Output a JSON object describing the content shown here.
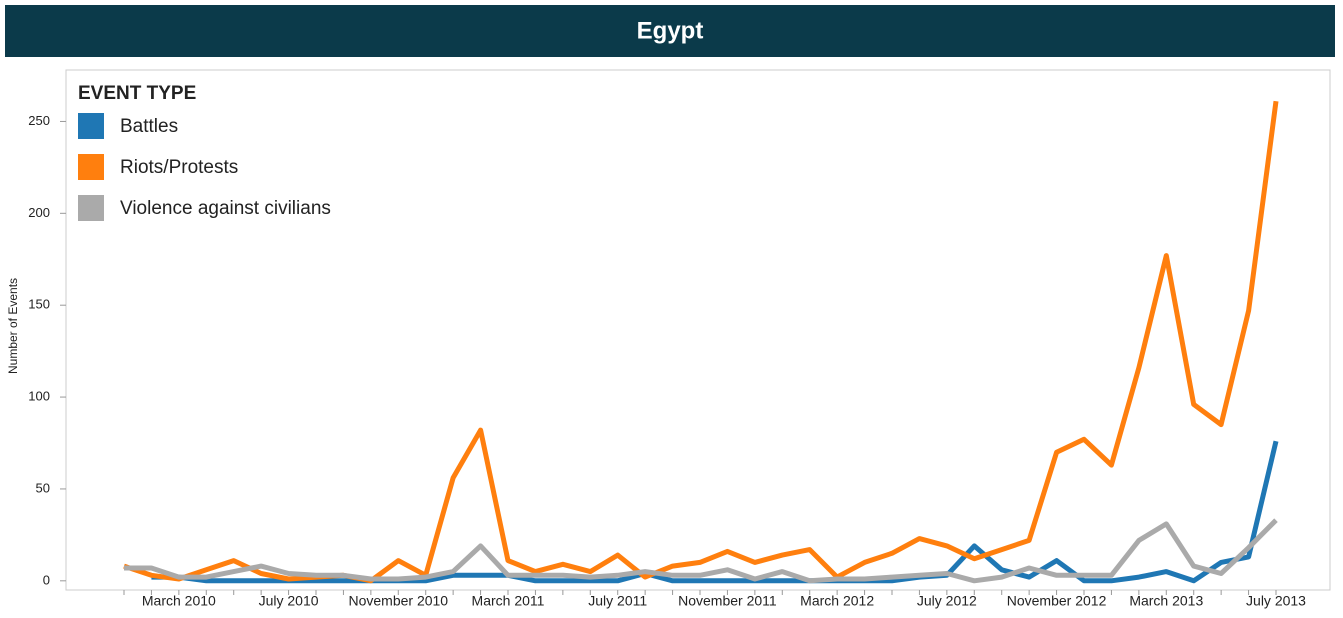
{
  "chart_data": {
    "type": "line",
    "title": "Egypt",
    "y_label": "Number of Events",
    "legend_title": "EVENT TYPE",
    "legend_position": "top-left",
    "categories": [
      null,
      null,
      "March 2010",
      null,
      null,
      null,
      "July 2010",
      null,
      null,
      null,
      "November 2010",
      null,
      null,
      null,
      "March 2011",
      null,
      null,
      null,
      "July 2011",
      null,
      null,
      null,
      "November 2011",
      null,
      null,
      null,
      "March 2012",
      null,
      null,
      null,
      "July 2012",
      null,
      null,
      null,
      "November 2012",
      null,
      null,
      null,
      "March 2013",
      null,
      null,
      null,
      "July 2013"
    ],
    "ylim": [
      -5,
      278
    ],
    "yticks": [
      0,
      50,
      100,
      150,
      200,
      250
    ],
    "grid": false,
    "series": [
      {
        "name": "Battles",
        "color": "#1f77b4",
        "values": [
          null,
          2,
          2,
          0,
          0,
          0,
          0,
          0,
          0,
          0,
          0,
          0,
          3,
          3,
          3,
          0,
          0,
          0,
          0,
          4,
          0,
          0,
          0,
          0,
          0,
          0,
          0,
          0,
          0,
          2,
          3,
          19,
          6,
          2,
          11,
          0,
          0,
          2,
          5,
          0,
          10,
          13,
          76
        ]
      },
      {
        "name": "Riots/Protests",
        "color": "#ff7f0e",
        "values": [
          8,
          3,
          1,
          6,
          11,
          4,
          1,
          2,
          3,
          0,
          11,
          3,
          56,
          82,
          11,
          5,
          9,
          5,
          14,
          2,
          8,
          10,
          16,
          10,
          14,
          17,
          2,
          10,
          15,
          23,
          19,
          12,
          17,
          22,
          70,
          77,
          63,
          116,
          177,
          96,
          85,
          147,
          261
        ]
      },
      {
        "name": "Violence against civilians",
        "color": "#aaaaaa",
        "values": [
          7,
          7,
          2,
          2,
          5,
          8,
          4,
          3,
          3,
          1,
          1,
          2,
          5,
          19,
          3,
          3,
          3,
          2,
          3,
          5,
          3,
          3,
          6,
          1,
          5,
          0,
          1,
          1,
          2,
          3,
          4,
          0,
          2,
          7,
          3,
          3,
          3,
          22,
          31,
          8,
          4,
          18,
          33
        ]
      }
    ]
  }
}
